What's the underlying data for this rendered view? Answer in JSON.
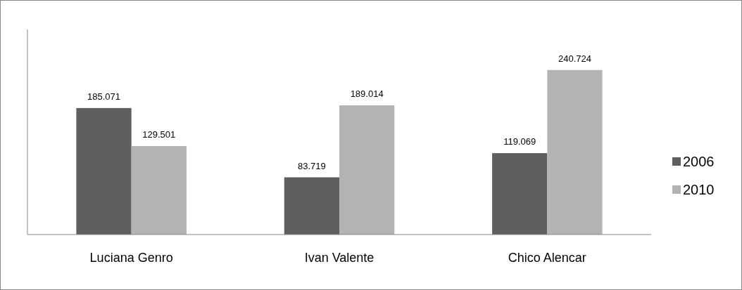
{
  "chart_data": {
    "type": "bar",
    "categories": [
      "Luciana Genro",
      "Ivan Valente",
      "Chico Alencar"
    ],
    "series": [
      {
        "name": "2006",
        "color": "#5f5f5f",
        "values": [
          185071,
          83719,
          119069
        ],
        "value_labels": [
          "185.071",
          "83.719",
          "119.069"
        ]
      },
      {
        "name": "2010",
        "color": "#b3b3b3",
        "values": [
          129501,
          189014,
          240724
        ],
        "value_labels": [
          "129.501",
          "189.014",
          "240.724"
        ]
      }
    ],
    "ylim": [
      0,
      300000
    ],
    "tick_labels": "x",
    "legend": "right"
  }
}
